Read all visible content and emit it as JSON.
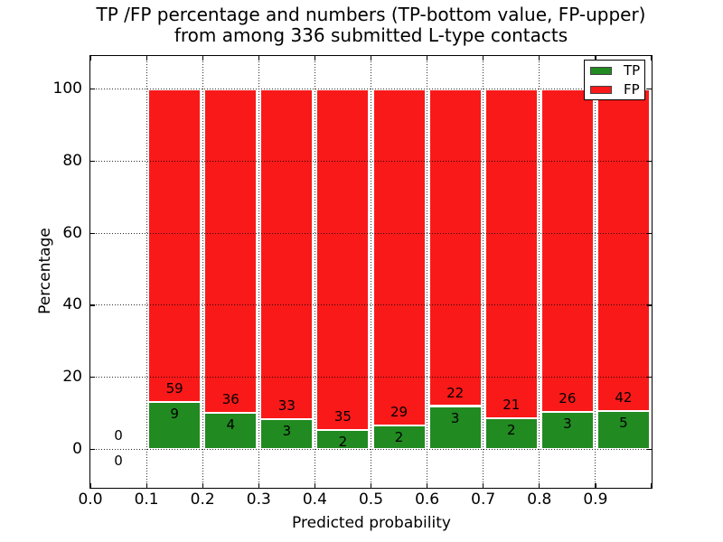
{
  "figure": {
    "title_line1": "TP /FP percentage and numbers (TP-bottom value, FP-upper)",
    "title_line2": "from among 336 submitted L-type contacts"
  },
  "chart_data": {
    "type": "bar",
    "stacked": true,
    "title": "TP /FP percentage and numbers (TP-bottom value, FP-upper) from among 336 submitted L-type contacts",
    "xlabel": "Predicted probability",
    "ylabel": "Percentage",
    "xlim": [
      0.0,
      1.0
    ],
    "ylim": [
      -10.7,
      109.2
    ],
    "grid": "dotted black, both axes, drawn over bars",
    "legend_position": "upper right",
    "total_submitted_contacts": 336,
    "x_tick_values": [
      0.0,
      0.1,
      0.2,
      0.3,
      0.4,
      0.5,
      0.6,
      0.7,
      0.8,
      0.9
    ],
    "x_tick_labels": [
      "0.0",
      "0.1",
      "0.2",
      "0.3",
      "0.4",
      "0.5",
      "0.6",
      "0.7",
      "0.8",
      "0.9"
    ],
    "y_tick_values": [
      0,
      20,
      40,
      60,
      80,
      100
    ],
    "y_tick_labels": [
      "0",
      "20",
      "40",
      "60",
      "80",
      "100"
    ],
    "series": [
      {
        "name": "TP",
        "color": "#218a21"
      },
      {
        "name": "FP",
        "color": "#f91919"
      }
    ],
    "bins": [
      {
        "bin_start": 0.0,
        "bin_end": 0.1,
        "tp_count": 0,
        "fp_count": 0,
        "tp_pct": 0.0,
        "fp_pct": 0.0
      },
      {
        "bin_start": 0.1,
        "bin_end": 0.2,
        "tp_count": 9,
        "fp_count": 59,
        "tp_pct": 13.2,
        "fp_pct": 86.8
      },
      {
        "bin_start": 0.2,
        "bin_end": 0.3,
        "tp_count": 4,
        "fp_count": 36,
        "tp_pct": 10.0,
        "fp_pct": 90.0
      },
      {
        "bin_start": 0.3,
        "bin_end": 0.4,
        "tp_count": 3,
        "fp_count": 33,
        "tp_pct": 8.3,
        "fp_pct": 91.7
      },
      {
        "bin_start": 0.4,
        "bin_end": 0.5,
        "tp_count": 2,
        "fp_count": 35,
        "tp_pct": 5.4,
        "fp_pct": 94.6
      },
      {
        "bin_start": 0.5,
        "bin_end": 0.6,
        "tp_count": 2,
        "fp_count": 29,
        "tp_pct": 6.5,
        "fp_pct": 93.5
      },
      {
        "bin_start": 0.6,
        "bin_end": 0.7,
        "tp_count": 3,
        "fp_count": 22,
        "tp_pct": 12.0,
        "fp_pct": 88.0
      },
      {
        "bin_start": 0.7,
        "bin_end": 0.8,
        "tp_count": 2,
        "fp_count": 21,
        "tp_pct": 8.7,
        "fp_pct": 91.3
      },
      {
        "bin_start": 0.8,
        "bin_end": 0.9,
        "tp_count": 3,
        "fp_count": 26,
        "tp_pct": 10.3,
        "fp_pct": 89.7
      },
      {
        "bin_start": 0.9,
        "bin_end": 1.0,
        "tp_count": 5,
        "fp_count": 42,
        "tp_pct": 10.6,
        "fp_pct": 89.4
      }
    ]
  }
}
